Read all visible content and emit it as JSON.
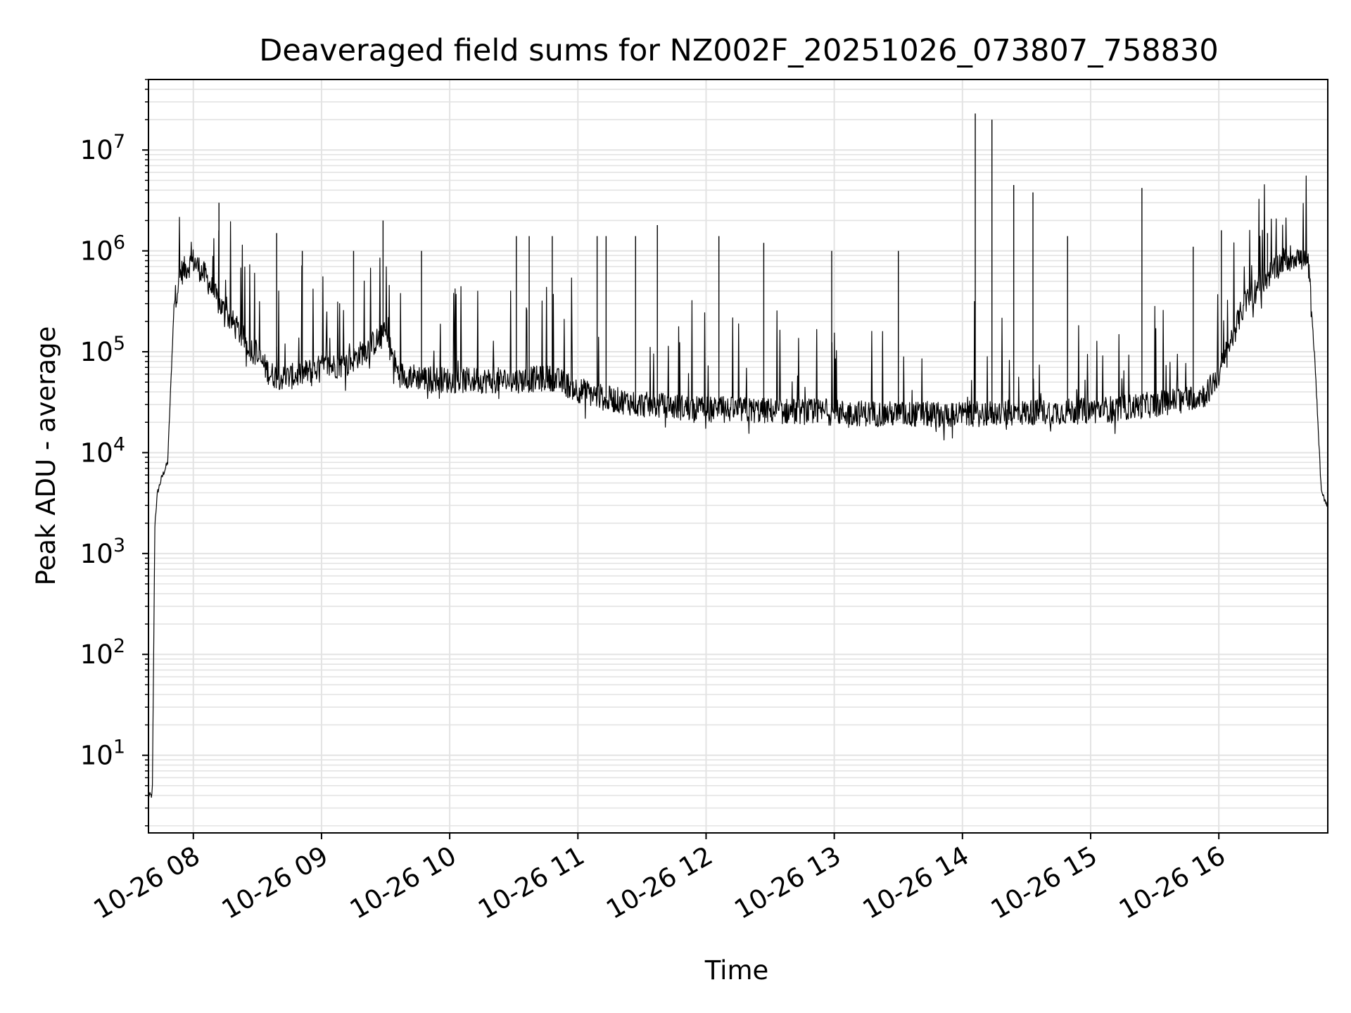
{
  "chart_data": {
    "type": "line",
    "title": "Deaveraged field sums for NZ002F_20251026_073807_758830",
    "xlabel": "Time",
    "ylabel": "Peak ADU - average",
    "yscale": "log",
    "grid": true,
    "xlim_hours": [
      7.65,
      16.85
    ],
    "ylim": [
      1.7,
      50000000
    ],
    "x_ticks": [
      {
        "value": 8,
        "label": "10-26 08"
      },
      {
        "value": 9,
        "label": "10-26 09"
      },
      {
        "value": 10,
        "label": "10-26 10"
      },
      {
        "value": 11,
        "label": "10-26 11"
      },
      {
        "value": 12,
        "label": "10-26 12"
      },
      {
        "value": 13,
        "label": "10-26 13"
      },
      {
        "value": 14,
        "label": "10-26 14"
      },
      {
        "value": 15,
        "label": "10-26 15"
      },
      {
        "value": 16,
        "label": "10-26 16"
      }
    ],
    "y_ticks": [
      {
        "value": 10,
        "base": "10",
        "exp": "1"
      },
      {
        "value": 100,
        "base": "10",
        "exp": "2"
      },
      {
        "value": 1000,
        "base": "10",
        "exp": "3"
      },
      {
        "value": 10000,
        "base": "10",
        "exp": "4"
      },
      {
        "value": 100000,
        "base": "10",
        "exp": "5"
      },
      {
        "value": 1000000,
        "base": "10",
        "exp": "6"
      },
      {
        "value": 10000000,
        "base": "10",
        "exp": "7"
      }
    ],
    "series": [
      {
        "name": "Peak ADU - average",
        "color": "#000000",
        "baseline": {
          "hours": [
            7.65,
            7.68,
            7.7,
            7.72,
            7.75,
            7.8,
            7.85,
            7.9,
            8.0,
            8.1,
            8.2,
            8.3,
            8.4,
            8.5,
            8.6,
            8.7,
            8.8,
            9.0,
            9.2,
            9.4,
            9.5,
            9.6,
            9.8,
            10.0,
            10.5,
            10.8,
            11.0,
            11.2,
            11.5,
            12.0,
            12.5,
            13.0,
            13.5,
            14.0,
            14.5,
            15.0,
            15.5,
            15.9,
            16.0,
            16.2,
            16.4,
            16.5,
            16.6,
            16.7,
            16.75,
            16.8,
            16.85
          ],
          "values": [
            4,
            4,
            2000,
            4000,
            5500,
            8000,
            300000,
            600000,
            800000,
            550000,
            300000,
            200000,
            130000,
            90000,
            60000,
            55000,
            58000,
            70000,
            75000,
            120000,
            150000,
            60000,
            55000,
            52000,
            52000,
            55000,
            42000,
            35000,
            30000,
            27000,
            26000,
            25000,
            24000,
            24000,
            25000,
            26000,
            30000,
            38000,
            60000,
            300000,
            600000,
            800000,
            900000,
            700000,
            80000,
            4000,
            3000
          ]
        },
        "spikes": [
          {
            "hour": 8.2,
            "value": 3000000
          },
          {
            "hour": 8.65,
            "value": 1500000
          },
          {
            "hour": 8.85,
            "value": 1000000
          },
          {
            "hour": 9.25,
            "value": 1000000
          },
          {
            "hour": 9.48,
            "value": 2000000
          },
          {
            "hour": 9.78,
            "value": 1000000
          },
          {
            "hour": 10.52,
            "value": 1400000
          },
          {
            "hour": 10.62,
            "value": 1400000
          },
          {
            "hour": 10.8,
            "value": 1400000
          },
          {
            "hour": 11.15,
            "value": 1400000
          },
          {
            "hour": 11.22,
            "value": 1400000
          },
          {
            "hour": 11.45,
            "value": 1400000
          },
          {
            "hour": 11.62,
            "value": 1800000
          },
          {
            "hour": 12.1,
            "value": 1400000
          },
          {
            "hour": 12.45,
            "value": 1200000
          },
          {
            "hour": 12.98,
            "value": 1000000
          },
          {
            "hour": 13.5,
            "value": 1000000
          },
          {
            "hour": 14.1,
            "value": 23000000
          },
          {
            "hour": 14.23,
            "value": 20000000
          },
          {
            "hour": 14.4,
            "value": 4500000
          },
          {
            "hour": 14.55,
            "value": 3800000
          },
          {
            "hour": 14.82,
            "value": 1400000
          },
          {
            "hour": 15.4,
            "value": 4200000
          },
          {
            "hour": 15.8,
            "value": 1100000
          },
          {
            "hour": 16.02,
            "value": 1600000
          },
          {
            "hour": 16.38,
            "value": 1500000
          }
        ]
      }
    ]
  }
}
